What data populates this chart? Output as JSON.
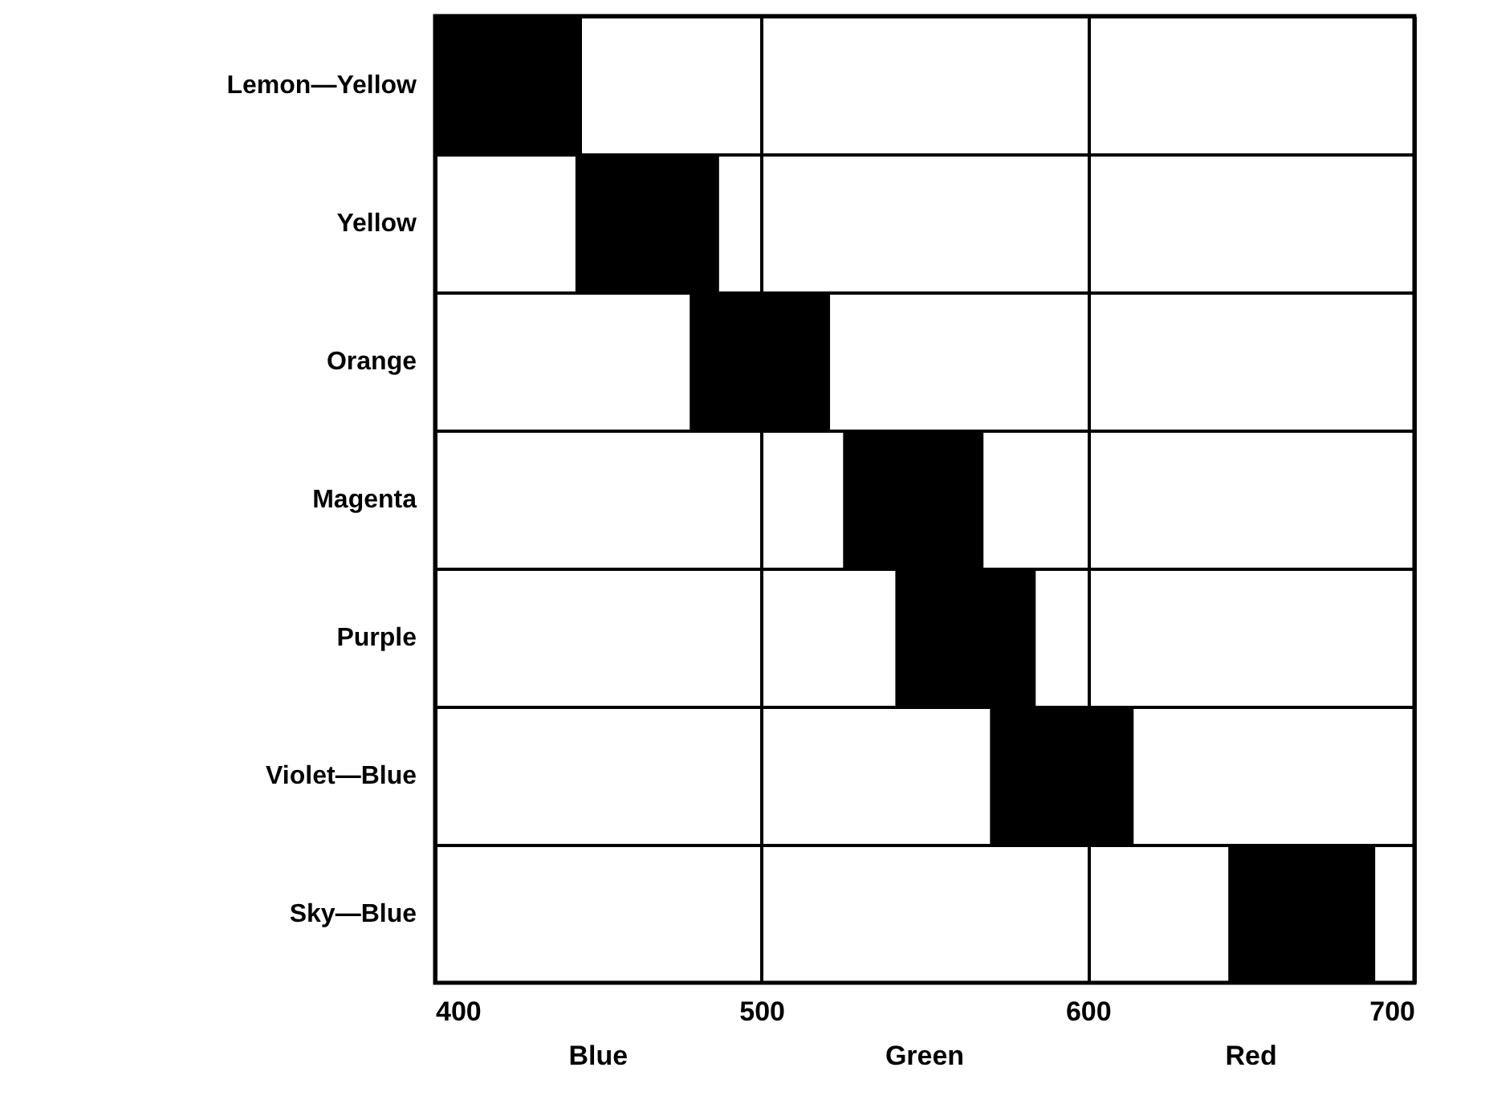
{
  "chart_data": {
    "type": "bar",
    "orientation": "horizontal",
    "categories": [
      "Lemon—Yellow",
      "Yellow",
      "Orange",
      "Magenta",
      "Purple",
      "Violet—Blue",
      "Sky—Blue"
    ],
    "base": [
      400,
      443,
      478,
      525,
      541,
      570,
      643
    ],
    "values": [
      45,
      44,
      43,
      43,
      43,
      44,
      45
    ],
    "color": "#000000",
    "xlim": [
      400,
      700
    ],
    "xticks": [
      400,
      500,
      600,
      700
    ],
    "grid": true,
    "annotations": [
      "Blue",
      "Green",
      "Red"
    ]
  }
}
